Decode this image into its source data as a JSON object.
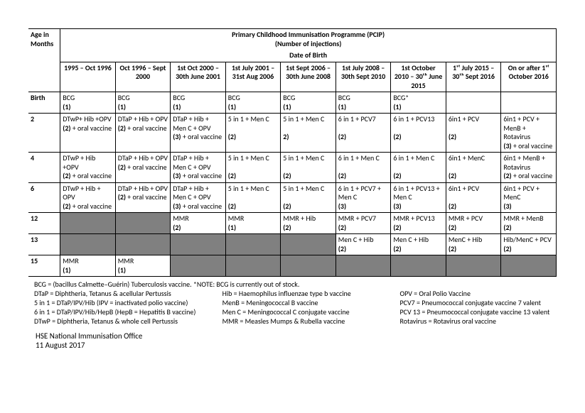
{
  "title": "Primary Childhood Immunisation Programme (PCIP)",
  "subtitle": "(Number of injections)",
  "dob_header": "Date of Birth",
  "age_header": "Age in Months",
  "cohorts": [
    "1995 – Oct 1996",
    "Oct 1996 – Sept 2000",
    "1st Oct 2000 – 30th June 2001",
    "1st July 2001 – 31st Aug 2006",
    "1st Sept 2006 – 30th June 2008",
    "1st July 2008 – 30th Sept 2010",
    "1st October 2010 – 30ᵗʰ June 2015",
    "1ˢᵗ July 2015 – 30ᵗʰ Sept 2016",
    "On or after 1ˢᵗ October 2016"
  ],
  "rows": [
    {
      "age": "Birth",
      "cells": [
        {
          "html": "BCG<br><span class='bold'>(1)</span>"
        },
        {
          "html": "BCG<br><span class='bold'>(1)</span>"
        },
        {
          "html": "BCG<br><span class='bold'>(1)</span>"
        },
        {
          "html": "BCG<br><span class='bold'>(1)</span>"
        },
        {
          "html": "BCG<br><span class='bold'>(1)</span>"
        },
        {
          "html": "BCG<br><span class='bold'>(1)</span>"
        },
        {
          "html": "BCG*<br><span class='bold'>(1)</span>"
        },
        {
          "html": ""
        },
        {
          "html": ""
        }
      ]
    },
    {
      "age": "2",
      "cells": [
        {
          "html": "DTwP+ Hib +OPV<br><span class='bold'>(2)</span> + oral vaccine"
        },
        {
          "html": "DTaP + Hib + OPV<br><span class='bold'>(2)</span> + oral vaccine"
        },
        {
          "html": "DTaP + Hib + Men C + OPV<br><span class='bold'>(3)</span> + oral vaccine"
        },
        {
          "html": "5 in 1 + Men C<br><br><span class='bold'>(2)</span>"
        },
        {
          "html": "5 in 1 + Men C<br><br><span class='bold'>2)</span>"
        },
        {
          "html": "6 in 1 + PCV7<br><br><span class='bold'>(2)</span>"
        },
        {
          "html": "6 in 1 + PCV13<br><br><span class='bold'>(2)</span>"
        },
        {
          "html": "6in1 + PCV<br><br><span class='bold'>(2)</span>"
        },
        {
          "html": "6in1 + PCV + MenB + Rotavirus<br><span class='bold'>(3)</span> + oral vaccine"
        }
      ]
    },
    {
      "age": "4",
      "cells": [
        {
          "html": "DTwP + Hib +OPV<br><span class='bold'>(2)</span> + oral vaccine"
        },
        {
          "html": "DTaP + Hib + OPV<br><span class='bold'>(2)</span> + oral vaccine"
        },
        {
          "html": "DTaP + Hib + Men C + OPV<br><span class='bold'>(3)</span> + oral vaccine"
        },
        {
          "html": "5 in 1 + Men C<br><br><span class='bold'>(2)</span>"
        },
        {
          "html": "5 in 1 + Men C<br><br><span class='bold'>(2)</span>"
        },
        {
          "html": "6 in 1 + Men C<br><br><span class='bold'>(2)</span>"
        },
        {
          "html": "6 in 1 + Men C<br><br><span class='bold'>(2)</span>"
        },
        {
          "html": "6in1 + MenC<br><br><span class='bold'>(2)</span>"
        },
        {
          "html": "6in1 + MenB + Rotavirus<br><span class='bold'>(2)</span> + oral vaccine"
        }
      ]
    },
    {
      "age": "6",
      "cells": [
        {
          "html": "DTwP + Hib + OPV<br><span class='bold'>(2)</span> + oral vaccine"
        },
        {
          "html": "DTaP + Hib + OPV<br><span class='bold'>(2)</span> + oral vaccine"
        },
        {
          "html": "DTaP + Hib + Men C + OPV<br><span class='bold'>(3)</span> + oral vaccine"
        },
        {
          "html": "5 in 1 + Men C<br><br><span class='bold'>(2)</span>"
        },
        {
          "html": "5 in 1 + Men C<br><br><span class='bold'>(2)</span>"
        },
        {
          "html": "6 in 1 + PCV7 + Men C<br><span class='bold'>(3)</span>"
        },
        {
          "html": "6 in 1 + PCV13 + Men C<br><span class='bold'>(3)</span>"
        },
        {
          "html": "6in1 + PCV<br><br><span class='bold'>(2)</span>"
        },
        {
          "html": "6in1 + PCV + MenC<br><span class='bold'>(3)</span>"
        }
      ]
    },
    {
      "age": "12",
      "cells": [
        {
          "grey": true
        },
        {
          "grey": true
        },
        {
          "html": "MMR<br><span class='bold'>(2)</span>"
        },
        {
          "html": "MMR<br><span class='bold'>(1)</span>"
        },
        {
          "html": "MMR + Hib<br><span class='bold'>(2)</span>"
        },
        {
          "html": "MMR + PCV7<br><span class='bold'>(2)</span>"
        },
        {
          "html": "MMR + PCV13<br><span class='bold'>(2)</span>"
        },
        {
          "html": "MMR + PCV<br><span class='bold'>(2)</span>"
        },
        {
          "html": "MMR + MenB<br><span class='bold'>(2)</span>"
        }
      ]
    },
    {
      "age": "13",
      "cells": [
        {
          "grey": true
        },
        {
          "grey": true
        },
        {
          "grey": true
        },
        {
          "grey": true
        },
        {
          "grey": true
        },
        {
          "html": "Men C + Hib<br><span class='bold'>(2)</span>"
        },
        {
          "html": "Men C + Hib<br><span class='bold'>(2)</span>"
        },
        {
          "html": "MenC + Hib<br><span class='bold'>(2)</span>"
        },
        {
          "html": "Hib/MenC + PCV<br><span class='bold'>(2)</span>"
        }
      ]
    },
    {
      "age": "15",
      "cells": [
        {
          "html": "MMR<br><span class='bold'>(1)</span>"
        },
        {
          "html": "MMR<br><span class='bold'>(1)</span>"
        },
        {
          "grey": true
        },
        {
          "grey": true
        },
        {
          "grey": true
        },
        {
          "grey": true
        },
        {
          "grey": true
        },
        {
          "grey": true
        },
        {
          "grey": true
        }
      ]
    }
  ],
  "legend": [
    [
      "BCG = (bacillus Calmette–Guérin) Tuberculosis vaccine. *NOTE: BCG is currently out of stock.",
      "",
      ""
    ],
    [
      "DTaP = Diphtheria, Tetanus & acellular Pertussis",
      "Hib = Haemophilus influenzae type b vaccine",
      "OPV = Oral Polio Vaccine"
    ],
    [
      "5 in 1 = DTaP/IPV/Hib (IPV = inactivated polio vaccine)",
      "MenB = Meningococcal B vaccine",
      "PCV7 = Pneumococcal conjugate vaccine 7 valent"
    ],
    [
      "6 in 1 = DTaP/IPV/Hib/HepB (HepB = Hepatitis B vaccine)",
      "Men C = Meningococcal C conjugate vaccine",
      "PCV 13 = Pneumococcal conjugate vaccine 13 valent"
    ],
    [
      "DTwP = Diphtheria, Tetanus & whole cell Pertussis",
      "MMR = Measles Mumps & Rubella vaccine",
      "Rotavirus = Rotavirus oral vaccine"
    ]
  ],
  "footer": {
    "line1": "HSE National Immunisation Office",
    "line2": "11 August 2017"
  }
}
